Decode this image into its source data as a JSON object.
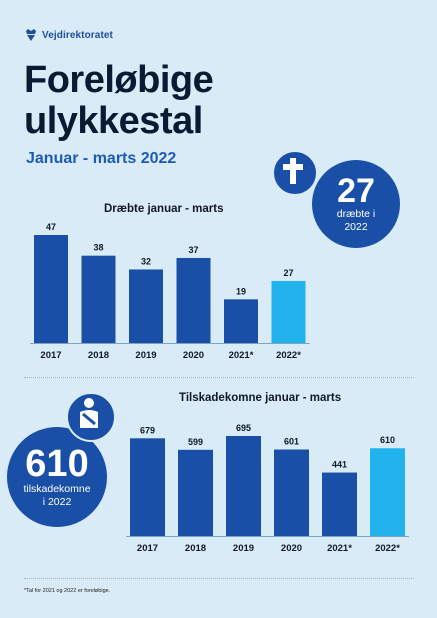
{
  "header": {
    "logo_text": "Vejdirektoratet",
    "logo_icon": "crown-shield-icon",
    "title_line1": "Foreløbige",
    "title_line2": "ulykkestal",
    "subtitle": "Januar - marts 2022"
  },
  "highlight_killed": {
    "value": "27",
    "line1": "dræbte i",
    "line2": "2022",
    "icon": "cross-icon"
  },
  "highlight_injured": {
    "value": "610",
    "line1": "tilskadekomne",
    "line2": "i 2022",
    "icon": "injured-person-icon"
  },
  "footnote": "*Tal for 2021 og 2022 er foreløbige.",
  "colors": {
    "bar": "#1a4fa8",
    "highlight_bar": "#22b3ee",
    "bubble": "#1a4fa8",
    "background": "#d8ebf7"
  },
  "chart_data": [
    {
      "type": "bar",
      "title": "Dræbte januar - marts",
      "categories": [
        "2017",
        "2018",
        "2019",
        "2020",
        "2021*",
        "2022*"
      ],
      "values": [
        47,
        38,
        32,
        37,
        19,
        27
      ],
      "ylim": [
        0,
        47
      ],
      "highlight_category": "2022*",
      "grid": false
    },
    {
      "type": "bar",
      "title": "Tilskadekomne januar - marts",
      "categories": [
        "2017",
        "2018",
        "2019",
        "2020",
        "2021*",
        "2022*"
      ],
      "values": [
        679,
        599,
        695,
        601,
        441,
        610
      ],
      "ylim": [
        0,
        695
      ],
      "highlight_category": "2022*",
      "grid": false
    }
  ]
}
